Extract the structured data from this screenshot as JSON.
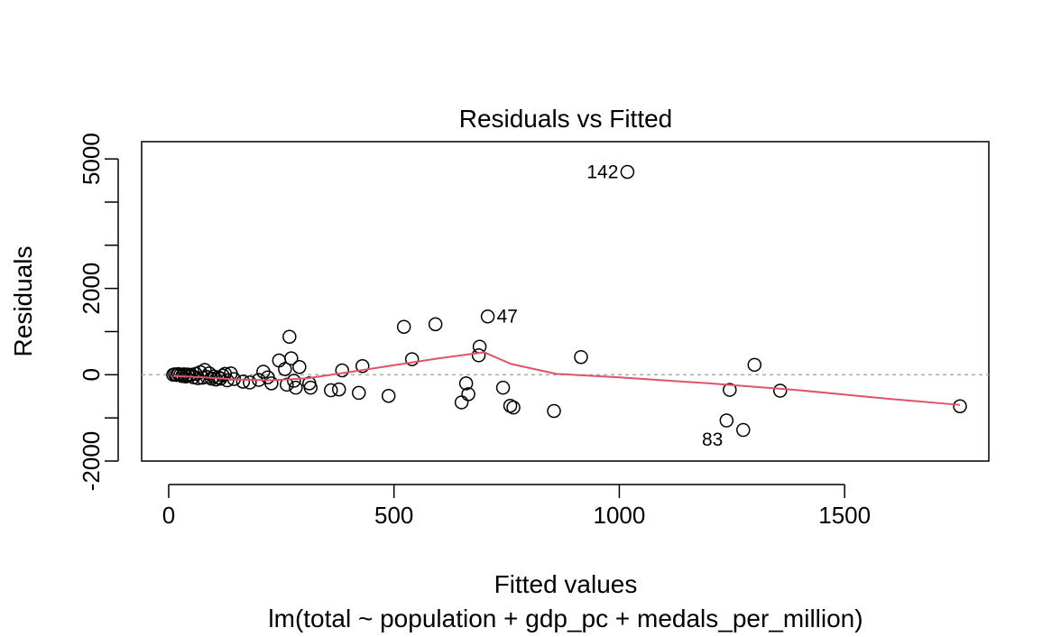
{
  "chart_data": {
    "type": "scatter",
    "title": "Residuals vs Fitted",
    "xlabel": "Fitted values",
    "subtitle": "lm(total ~ population + gdp_pc + medals_per_million)",
    "ylabel": "Residuals",
    "xlim": [
      -60,
      1820
    ],
    "ylim": [
      -2000,
      5400
    ],
    "x_ticks": [
      0,
      500,
      1000,
      1500
    ],
    "x_tick_labels": [
      "0",
      "500",
      "1000",
      "1500"
    ],
    "y_ticks": [
      -2000,
      -1000,
      0,
      1000,
      2000,
      3000,
      4000,
      5000
    ],
    "y_tick_labels": [
      "-2000",
      "",
      "0",
      "",
      "2000",
      "",
      "",
      "5000"
    ],
    "zero_line": true,
    "points": [
      {
        "x": 10,
        "y": 0
      },
      {
        "x": 14,
        "y": 10
      },
      {
        "x": 18,
        "y": -5
      },
      {
        "x": 22,
        "y": 15
      },
      {
        "x": 26,
        "y": 0
      },
      {
        "x": 30,
        "y": -30
      },
      {
        "x": 34,
        "y": 10
      },
      {
        "x": 38,
        "y": -40
      },
      {
        "x": 42,
        "y": 5
      },
      {
        "x": 46,
        "y": -20
      },
      {
        "x": 50,
        "y": 0
      },
      {
        "x": 55,
        "y": -60
      },
      {
        "x": 60,
        "y": 20
      },
      {
        "x": 65,
        "y": -80
      },
      {
        "x": 70,
        "y": 60
      },
      {
        "x": 75,
        "y": -70
      },
      {
        "x": 80,
        "y": 110
      },
      {
        "x": 85,
        "y": -50
      },
      {
        "x": 90,
        "y": 30
      },
      {
        "x": 95,
        "y": -90
      },
      {
        "x": 100,
        "y": -40
      },
      {
        "x": 105,
        "y": -110
      },
      {
        "x": 110,
        "y": -60
      },
      {
        "x": 115,
        "y": -90
      },
      {
        "x": 120,
        "y": -20
      },
      {
        "x": 125,
        "y": 20
      },
      {
        "x": 130,
        "y": -130
      },
      {
        "x": 138,
        "y": 30
      },
      {
        "x": 145,
        "y": -100
      },
      {
        "x": 165,
        "y": -160
      },
      {
        "x": 180,
        "y": -180
      },
      {
        "x": 200,
        "y": -120
      },
      {
        "x": 210,
        "y": 70
      },
      {
        "x": 220,
        "y": -60
      },
      {
        "x": 228,
        "y": -200
      },
      {
        "x": 245,
        "y": 330
      },
      {
        "x": 258,
        "y": 130
      },
      {
        "x": 262,
        "y": -230
      },
      {
        "x": 268,
        "y": 880
      },
      {
        "x": 272,
        "y": 380
      },
      {
        "x": 278,
        "y": -140
      },
      {
        "x": 282,
        "y": -300
      },
      {
        "x": 290,
        "y": 180
      },
      {
        "x": 312,
        "y": -200
      },
      {
        "x": 315,
        "y": -300
      },
      {
        "x": 360,
        "y": -360
      },
      {
        "x": 378,
        "y": -340
      },
      {
        "x": 385,
        "y": 100
      },
      {
        "x": 422,
        "y": -420
      },
      {
        "x": 430,
        "y": 200
      },
      {
        "x": 488,
        "y": -490
      },
      {
        "x": 522,
        "y": 1110
      },
      {
        "x": 540,
        "y": 360
      },
      {
        "x": 592,
        "y": 1170
      },
      {
        "x": 650,
        "y": -640
      },
      {
        "x": 660,
        "y": -200
      },
      {
        "x": 665,
        "y": -450
      },
      {
        "x": 688,
        "y": 450
      },
      {
        "x": 690,
        "y": 650
      },
      {
        "x": 708,
        "y": 1350
      },
      {
        "x": 742,
        "y": -300
      },
      {
        "x": 758,
        "y": -720
      },
      {
        "x": 765,
        "y": -760
      },
      {
        "x": 855,
        "y": -840
      },
      {
        "x": 915,
        "y": 410
      },
      {
        "x": 1018,
        "y": 4700
      },
      {
        "x": 1238,
        "y": -1060
      },
      {
        "x": 1245,
        "y": -350
      },
      {
        "x": 1275,
        "y": -1280
      },
      {
        "x": 1300,
        "y": 230
      },
      {
        "x": 1357,
        "y": -370
      },
      {
        "x": 1756,
        "y": -730
      }
    ],
    "point_labels": [
      {
        "text": "142",
        "x": 1018,
        "y": 4700,
        "side": "left"
      },
      {
        "text": "47",
        "x": 708,
        "y": 1350,
        "side": "right"
      },
      {
        "text": "83",
        "x": 1238,
        "y": -1060,
        "side": "below-left"
      }
    ],
    "smooth_line": {
      "color": "#DF536B",
      "x": [
        10,
        80,
        150,
        230,
        310,
        400,
        500,
        600,
        700,
        760,
        860,
        1000,
        1200,
        1400,
        1600,
        1756
      ],
      "y": [
        -30,
        -60,
        -110,
        -130,
        -80,
        60,
        220,
        380,
        520,
        250,
        20,
        -60,
        -200,
        -360,
        -560,
        -700
      ]
    }
  }
}
